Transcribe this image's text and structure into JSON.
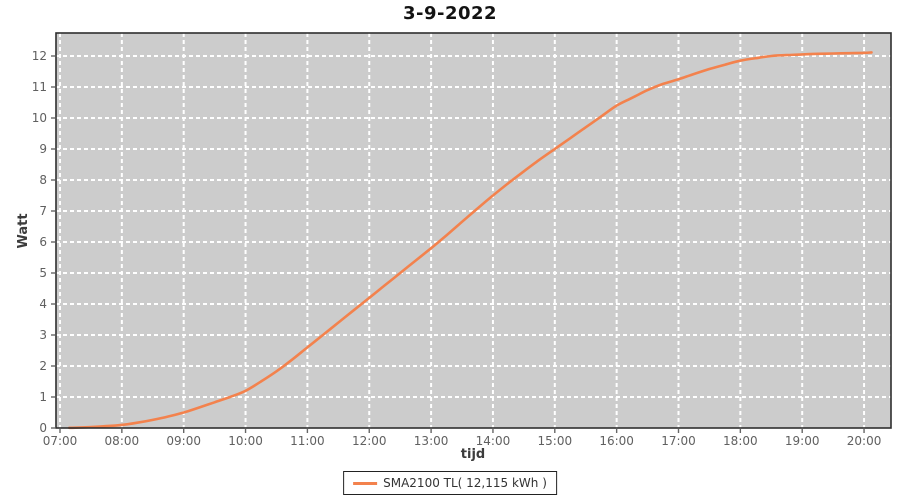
{
  "title": "3-9-2022",
  "axes": {
    "x_label": "tijd",
    "y_label": "Watt"
  },
  "legend": {
    "series_label": "SMA2100 TL( 12,115 kWh )"
  },
  "colors": {
    "series_orange": "#f3824d",
    "plot_background": "#cccccc",
    "gridline": "#ffffff",
    "plot_border": "#2e2e2e",
    "tick_mark": "#666666",
    "tick_label": "#606060",
    "title_text": "#121212",
    "axis_label_text": "#3c3c3c",
    "legend_border": "#222222",
    "legend_text": "#333333",
    "page_background": "#ffffff"
  },
  "chart_data": {
    "type": "line",
    "title": "3-9-2022",
    "xlabel": "tijd",
    "ylabel": "Watt",
    "x_tick_labels": [
      "07:00",
      "08:00",
      "09:00",
      "10:00",
      "11:00",
      "12:00",
      "13:00",
      "14:00",
      "15:00",
      "16:00",
      "17:00",
      "18:00",
      "19:00",
      "20:00"
    ],
    "x_tick_hours": [
      7,
      8,
      9,
      10,
      11,
      12,
      13,
      14,
      15,
      16,
      17,
      18,
      19,
      20
    ],
    "y_ticks": [
      0,
      1,
      2,
      3,
      4,
      5,
      6,
      7,
      8,
      9,
      10,
      11,
      12
    ],
    "ylim": [
      0,
      12.74
    ],
    "xlim_hours": [
      6.94,
      20.43
    ],
    "grid": "white dashed gridlines on gray plot background",
    "legend_position": "bottom-center",
    "series": [
      {
        "name": "SMA2100 TL( 12,115 kWh )",
        "color": "#f3824d",
        "final_total_kwh": 12.115,
        "points_time_hours_vs_value": [
          [
            7.15,
            0.005
          ],
          [
            7.25,
            0.01
          ],
          [
            7.5,
            0.03
          ],
          [
            7.75,
            0.06
          ],
          [
            8.0,
            0.1
          ],
          [
            8.25,
            0.17
          ],
          [
            8.5,
            0.26
          ],
          [
            8.75,
            0.37
          ],
          [
            9.0,
            0.5
          ],
          [
            9.25,
            0.66
          ],
          [
            9.5,
            0.83
          ],
          [
            9.75,
            1.0
          ],
          [
            10.0,
            1.2
          ],
          [
            10.25,
            1.5
          ],
          [
            10.5,
            1.83
          ],
          [
            10.75,
            2.2
          ],
          [
            11.0,
            2.6
          ],
          [
            11.25,
            3.0
          ],
          [
            11.5,
            3.4
          ],
          [
            11.75,
            3.8
          ],
          [
            12.0,
            4.2
          ],
          [
            12.25,
            4.6
          ],
          [
            12.5,
            5.0
          ],
          [
            12.75,
            5.4
          ],
          [
            13.0,
            5.8
          ],
          [
            13.25,
            6.22
          ],
          [
            13.5,
            6.65
          ],
          [
            13.75,
            7.08
          ],
          [
            14.0,
            7.5
          ],
          [
            14.25,
            7.9
          ],
          [
            14.5,
            8.28
          ],
          [
            14.75,
            8.65
          ],
          [
            15.0,
            9.0
          ],
          [
            15.25,
            9.35
          ],
          [
            15.5,
            9.7
          ],
          [
            15.75,
            10.05
          ],
          [
            16.0,
            10.4
          ],
          [
            16.25,
            10.65
          ],
          [
            16.5,
            10.9
          ],
          [
            16.75,
            11.1
          ],
          [
            17.0,
            11.25
          ],
          [
            17.25,
            11.42
          ],
          [
            17.5,
            11.58
          ],
          [
            17.75,
            11.72
          ],
          [
            18.0,
            11.85
          ],
          [
            18.25,
            11.93
          ],
          [
            18.5,
            12.0
          ],
          [
            18.75,
            12.03
          ],
          [
            19.0,
            12.05
          ],
          [
            19.25,
            12.07
          ],
          [
            19.5,
            12.08
          ],
          [
            19.75,
            12.09
          ],
          [
            20.0,
            12.1
          ],
          [
            20.12,
            12.115
          ]
        ]
      }
    ]
  }
}
